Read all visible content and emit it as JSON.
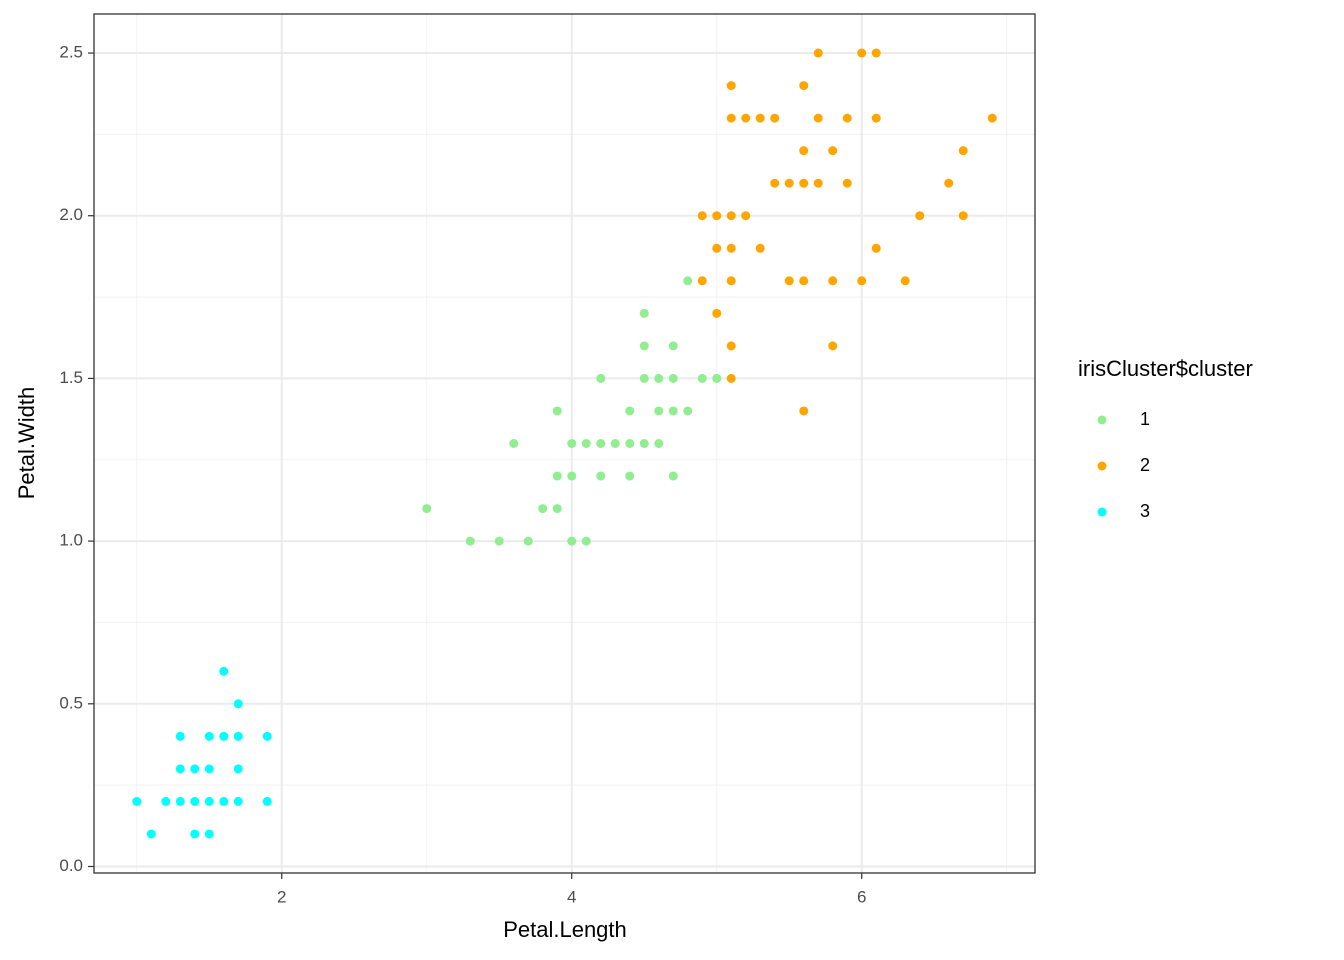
{
  "chart_data": {
    "type": "scatter",
    "x_label": "Petal.Length",
    "y_label": "Petal.Width",
    "legend_title": "irisCluster$cluster",
    "legend": "right",
    "grid": true,
    "xlim": [
      0.705,
      7.195
    ],
    "ylim": [
      -0.02,
      2.62
    ],
    "xticks": [
      2,
      4,
      6
    ],
    "yticks": [
      {
        "value": 0,
        "label": "0.0"
      },
      {
        "value": 0.5,
        "label": "0.5"
      },
      {
        "value": 1,
        "label": "1.0"
      },
      {
        "value": 1.5,
        "label": "1.5"
      },
      {
        "value": 2,
        "label": "2.0"
      },
      {
        "value": 2.5,
        "label": "2.5"
      }
    ],
    "x_minor_ticks": [
      1,
      3,
      5,
      7
    ],
    "y_minor_ticks": [
      0.25,
      0.75,
      1.25,
      1.75,
      2.25
    ],
    "series": [
      {
        "name": "1",
        "color": "#90EE90",
        "x": [
          3.0,
          3.8,
          3.9,
          3.3,
          3.5,
          3.7,
          4.0,
          4.1,
          3.6,
          4.0,
          4.1,
          4.2,
          4.3,
          4.4,
          4.5,
          4.6,
          3.9,
          4.0,
          4.2,
          4.4,
          4.7,
          3.9,
          4.4,
          4.6,
          4.7,
          4.8,
          4.2,
          4.5,
          4.6,
          4.7,
          4.9,
          5.0,
          4.5,
          4.7,
          4.5,
          4.8
        ],
        "values": [
          1.1,
          1.1,
          1.1,
          1.0,
          1.0,
          1.0,
          1.0,
          1.0,
          1.3,
          1.3,
          1.3,
          1.3,
          1.3,
          1.3,
          1.3,
          1.3,
          1.2,
          1.2,
          1.2,
          1.2,
          1.2,
          1.4,
          1.4,
          1.4,
          1.4,
          1.4,
          1.5,
          1.5,
          1.5,
          1.5,
          1.5,
          1.5,
          1.6,
          1.6,
          1.7,
          1.8
        ]
      },
      {
        "name": "2",
        "color": "#FFA500",
        "x": [
          5.6,
          5.1,
          5.1,
          5.8,
          5.0,
          4.9,
          5.1,
          5.5,
          5.6,
          5.8,
          6.0,
          6.3,
          5.0,
          5.1,
          5.3,
          6.1,
          4.9,
          5.0,
          5.1,
          5.2,
          6.4,
          6.7,
          5.4,
          5.5,
          5.6,
          5.7,
          5.9,
          6.6,
          5.6,
          5.8,
          6.7,
          5.1,
          5.2,
          5.3,
          5.4,
          5.7,
          5.9,
          6.1,
          6.9,
          5.1,
          5.6,
          5.7,
          6.0,
          6.1
        ],
        "values": [
          1.4,
          1.5,
          1.6,
          1.6,
          1.7,
          1.8,
          1.8,
          1.8,
          1.8,
          1.8,
          1.8,
          1.8,
          1.9,
          1.9,
          1.9,
          1.9,
          2.0,
          2.0,
          2.0,
          2.0,
          2.0,
          2.0,
          2.1,
          2.1,
          2.1,
          2.1,
          2.1,
          2.1,
          2.2,
          2.2,
          2.2,
          2.3,
          2.3,
          2.3,
          2.3,
          2.3,
          2.3,
          2.3,
          2.3,
          2.4,
          2.4,
          2.5,
          2.5,
          2.5
        ]
      },
      {
        "name": "3",
        "color": "#00FFFF",
        "x": [
          1.0,
          1.2,
          1.3,
          1.4,
          1.5,
          1.6,
          1.7,
          1.9,
          1.1,
          1.4,
          1.5,
          1.3,
          1.4,
          1.5,
          1.7,
          1.3,
          1.5,
          1.6,
          1.7,
          1.9,
          1.7,
          1.6
        ],
        "values": [
          0.2,
          0.2,
          0.2,
          0.2,
          0.2,
          0.2,
          0.2,
          0.2,
          0.1,
          0.1,
          0.1,
          0.3,
          0.3,
          0.3,
          0.3,
          0.4,
          0.4,
          0.4,
          0.4,
          0.4,
          0.5,
          0.6
        ]
      }
    ]
  }
}
